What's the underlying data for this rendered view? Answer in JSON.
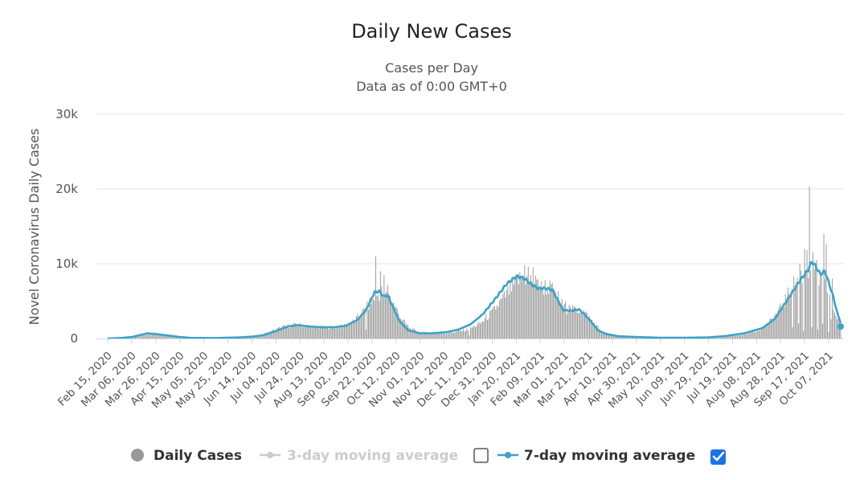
{
  "chart_data": {
    "type": "bar",
    "title": "Daily New Cases",
    "subtitle_lines": [
      "Cases per Day",
      "Data as of 0:00 GMT+0"
    ],
    "ylabel": "Novel Coronavirus Daily Cases",
    "xlabel": "",
    "ylim": [
      0,
      30000
    ],
    "yticks": [
      {
        "value": 0,
        "label": "0"
      },
      {
        "value": 10000,
        "label": "10k"
      },
      {
        "value": 20000,
        "label": "20k"
      },
      {
        "value": 30000,
        "label": "30k"
      }
    ],
    "grid": true,
    "start_date": "2020-02-15",
    "num_days": 611,
    "xtick_labels": [
      "Feb 15, 2020",
      "Mar 06, 2020",
      "Mar 26, 2020",
      "Apr 15, 2020",
      "May 05, 2020",
      "May 25, 2020",
      "Jun 14, 2020",
      "Jul 04, 2020",
      "Jul 24, 2020",
      "Aug 13, 2020",
      "Sep 02, 2020",
      "Sep 22, 2020",
      "Oct 12, 2020",
      "Nov 01, 2020",
      "Nov 21, 2020",
      "Dec 11, 2020",
      "Dec 31, 2020",
      "Jan 20, 2021",
      "Feb 09, 2021",
      "Mar 01, 2021",
      "Mar 21, 2021",
      "Apr 10, 2021",
      "Apr 30, 2021",
      "May 20, 2021",
      "Jun 09, 2021",
      "Jun 29, 2021",
      "Jul 19, 2021",
      "Aug 08, 2021",
      "Aug 28, 2021",
      "Sep 17, 2021",
      "Oct 07, 2021"
    ],
    "xtick_step_days": 20,
    "series": [
      {
        "name": "Daily Cases",
        "kind": "bar",
        "color": "#999999",
        "visible": true,
        "description": "daily values sampled roughly from the figure (day offset from start_date, cases)",
        "keypoints": [
          [
            0,
            0
          ],
          [
            10,
            100
          ],
          [
            20,
            200
          ],
          [
            28,
            400
          ],
          [
            35,
            650
          ],
          [
            45,
            450
          ],
          [
            55,
            300
          ],
          [
            65,
            150
          ],
          [
            80,
            100
          ],
          [
            100,
            150
          ],
          [
            115,
            250
          ],
          [
            125,
            400
          ],
          [
            135,
            900
          ],
          [
            145,
            1500
          ],
          [
            155,
            1800
          ],
          [
            165,
            1700
          ],
          [
            175,
            1500
          ],
          [
            185,
            1500
          ],
          [
            195,
            1600
          ],
          [
            205,
            2300
          ],
          [
            215,
            4000
          ],
          [
            222,
            5500
          ],
          [
            228,
            6200
          ],
          [
            235,
            5500
          ],
          [
            240,
            4000
          ],
          [
            245,
            2500
          ],
          [
            252,
            1300
          ],
          [
            260,
            800
          ],
          [
            270,
            700
          ],
          [
            280,
            700
          ],
          [
            290,
            900
          ],
          [
            300,
            1200
          ],
          [
            310,
            2000
          ],
          [
            320,
            3500
          ],
          [
            330,
            5500
          ],
          [
            340,
            7500
          ],
          [
            345,
            8200
          ],
          [
            355,
            7500
          ],
          [
            360,
            6800
          ],
          [
            368,
            6800
          ],
          [
            375,
            5500
          ],
          [
            380,
            4000
          ],
          [
            385,
            3800
          ],
          [
            395,
            3800
          ],
          [
            405,
            2000
          ],
          [
            412,
            800
          ],
          [
            420,
            500
          ],
          [
            430,
            300
          ],
          [
            450,
            200
          ],
          [
            470,
            150
          ],
          [
            490,
            150
          ],
          [
            510,
            200
          ],
          [
            525,
            400
          ],
          [
            540,
            1000
          ],
          [
            550,
            2000
          ],
          [
            560,
            4000
          ],
          [
            570,
            7000
          ],
          [
            580,
            9000
          ],
          [
            585,
            9500
          ],
          [
            590,
            8200
          ],
          [
            600,
            6500
          ],
          [
            605,
            3500
          ],
          [
            611,
            1500
          ]
        ],
        "spikes": [
          [
            223,
            11000
          ],
          [
            227,
            9000
          ],
          [
            230,
            8500
          ],
          [
            233,
            7200
          ],
          [
            347,
            9800
          ],
          [
            350,
            9600
          ],
          [
            354,
            9500
          ],
          [
            358,
            8000
          ],
          [
            364,
            7800
          ],
          [
            372,
            6500
          ],
          [
            381,
            5000
          ],
          [
            384,
            4500
          ],
          [
            388,
            4200
          ],
          [
            576,
            10000
          ],
          [
            580,
            12000
          ],
          [
            582,
            11800
          ],
          [
            584,
            20300
          ],
          [
            587,
            11500
          ],
          [
            590,
            10500
          ],
          [
            596,
            14000
          ],
          [
            598,
            12700
          ],
          [
            603,
            8000
          ]
        ],
        "dips": [
          [
            215,
            1200
          ],
          [
            301,
            400
          ],
          [
            570,
            1500
          ],
          [
            575,
            2000
          ],
          [
            579,
            1000
          ],
          [
            586,
            1500
          ],
          [
            591,
            1200
          ],
          [
            595,
            2000
          ],
          [
            600,
            900
          ],
          [
            602,
            2600
          ]
        ]
      },
      {
        "name": "3-day moving average",
        "kind": "line",
        "color": "#cccccc",
        "visible": false
      },
      {
        "name": "7-day moving average",
        "kind": "line",
        "color": "#3ba3c7",
        "visible": true,
        "description": "smoothed values (day offset from start_date, cases)",
        "keypoints": [
          [
            0,
            0
          ],
          [
            12,
            80
          ],
          [
            20,
            200
          ],
          [
            28,
            500
          ],
          [
            33,
            700
          ],
          [
            40,
            600
          ],
          [
            50,
            400
          ],
          [
            60,
            200
          ],
          [
            70,
            80
          ],
          [
            90,
            60
          ],
          [
            110,
            150
          ],
          [
            120,
            250
          ],
          [
            130,
            450
          ],
          [
            140,
            1000
          ],
          [
            150,
            1600
          ],
          [
            158,
            1800
          ],
          [
            168,
            1600
          ],
          [
            178,
            1500
          ],
          [
            188,
            1500
          ],
          [
            198,
            1700
          ],
          [
            208,
            2500
          ],
          [
            215,
            3800
          ],
          [
            222,
            6200
          ],
          [
            226,
            6300
          ],
          [
            230,
            5600
          ],
          [
            233,
            5800
          ],
          [
            238,
            4000
          ],
          [
            243,
            2300
          ],
          [
            250,
            1100
          ],
          [
            260,
            700
          ],
          [
            270,
            700
          ],
          [
            282,
            850
          ],
          [
            292,
            1200
          ],
          [
            302,
            1900
          ],
          [
            312,
            3200
          ],
          [
            322,
            5200
          ],
          [
            332,
            7300
          ],
          [
            340,
            8300
          ],
          [
            346,
            8100
          ],
          [
            353,
            7200
          ],
          [
            358,
            6700
          ],
          [
            365,
            6700
          ],
          [
            370,
            6500
          ],
          [
            375,
            5000
          ],
          [
            379,
            3800
          ],
          [
            386,
            3700
          ],
          [
            392,
            3900
          ],
          [
            397,
            3200
          ],
          [
            402,
            2300
          ],
          [
            408,
            1100
          ],
          [
            415,
            600
          ],
          [
            425,
            300
          ],
          [
            440,
            200
          ],
          [
            460,
            100
          ],
          [
            480,
            100
          ],
          [
            500,
            150
          ],
          [
            515,
            350
          ],
          [
            530,
            700
          ],
          [
            545,
            1400
          ],
          [
            555,
            2600
          ],
          [
            565,
            5000
          ],
          [
            575,
            7500
          ],
          [
            583,
            9200
          ],
          [
            586,
            10300
          ],
          [
            589,
            9700
          ],
          [
            593,
            8600
          ],
          [
            597,
            9000
          ],
          [
            600,
            7500
          ],
          [
            604,
            5500
          ],
          [
            607,
            3500
          ],
          [
            611,
            1600
          ]
        ]
      }
    ],
    "legend": {
      "position": "bottom-center",
      "items": [
        {
          "label": "Daily Cases",
          "symbol": "circle",
          "color": "#999999",
          "active": true,
          "has_checkbox": false
        },
        {
          "label": "3-day moving average",
          "symbol": "line-marker",
          "color": "#cccccc",
          "active": false,
          "has_checkbox": true,
          "checked": false
        },
        {
          "label": "7-day moving average",
          "symbol": "line-marker",
          "color": "#3ba3c7",
          "active": true,
          "has_checkbox": true,
          "checked": true
        }
      ]
    }
  },
  "style": {
    "gridline_color": "#e6e6e6",
    "axis_color": "#ccd6eb",
    "checkbox_checked_color": "#1a73e8"
  }
}
